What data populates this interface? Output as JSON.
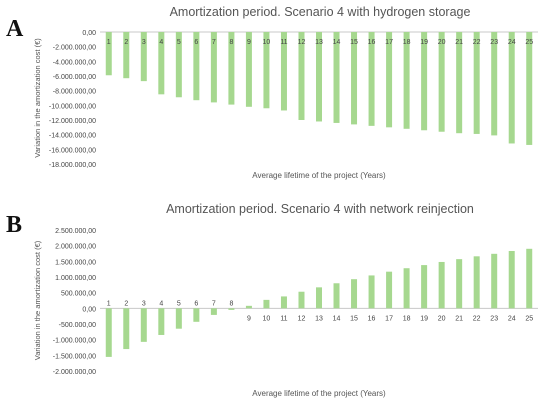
{
  "panels": [
    {
      "letter": "A"
    },
    {
      "letter": "B"
    }
  ],
  "chart_data": [
    {
      "type": "bar",
      "title": "Amortization period. Scenario 4 with hydrogen storage",
      "xlabel": "Average lifetime of the project (Years)",
      "ylabel": "Variation in the amortization cost (€)",
      "categories": [
        "1",
        "2",
        "3",
        "4",
        "5",
        "6",
        "7",
        "8",
        "9",
        "10",
        "11",
        "12",
        "13",
        "14",
        "15",
        "16",
        "17",
        "18",
        "19",
        "20",
        "21",
        "22",
        "23",
        "24",
        "25"
      ],
      "values": [
        -5900000,
        -6300000,
        -6700000,
        -8500000,
        -8900000,
        -9300000,
        -9600000,
        -9900000,
        -10200000,
        -10400000,
        -10700000,
        -12000000,
        -12200000,
        -12400000,
        -12600000,
        -12800000,
        -13000000,
        -13200000,
        -13400000,
        -13600000,
        -13800000,
        -13900000,
        -14100000,
        -15200000,
        -15400000
      ],
      "ylim": [
        -18000000,
        0
      ],
      "yticks": [
        "0,00",
        "-2.000.000,00",
        "-4.000.000,00",
        "-6.000.000,00",
        "-8.000.000,00",
        "-10.000.000,00",
        "-12.000.000,00",
        "-14.000.000,00",
        "-16.000.000,00",
        "-18.000.000,00"
      ],
      "grid": false,
      "bar_color": "#a6d88f"
    },
    {
      "type": "bar",
      "title": "Amortization period. Scenario 4 with network reinjection",
      "xlabel": "Average lifetime of the project (Years)",
      "ylabel": "Variation in the amortization cost (€)",
      "categories": [
        "1",
        "2",
        "3",
        "4",
        "5",
        "6",
        "7",
        "8",
        "9",
        "10",
        "11",
        "12",
        "13",
        "14",
        "15",
        "16",
        "17",
        "18",
        "19",
        "20",
        "21",
        "22",
        "23",
        "24",
        "25"
      ],
      "values": [
        -1550000,
        -1300000,
        -1070000,
        -850000,
        -650000,
        -430000,
        -210000,
        -50000,
        80000,
        270000,
        380000,
        530000,
        670000,
        800000,
        930000,
        1050000,
        1170000,
        1280000,
        1380000,
        1480000,
        1570000,
        1660000,
        1740000,
        1830000,
        1900000
      ],
      "ylim": [
        -2000000,
        2500000
      ],
      "yticks": [
        "2.500.000,00",
        "2.000.000,00",
        "1.500.000,00",
        "1.000.000,00",
        "500.000,00",
        "0,00",
        "-500.000,00",
        "-1.000.000,00",
        "-1.500.000,00",
        "-2.000.000,00"
      ],
      "grid": false,
      "bar_color": "#a6d88f"
    }
  ]
}
